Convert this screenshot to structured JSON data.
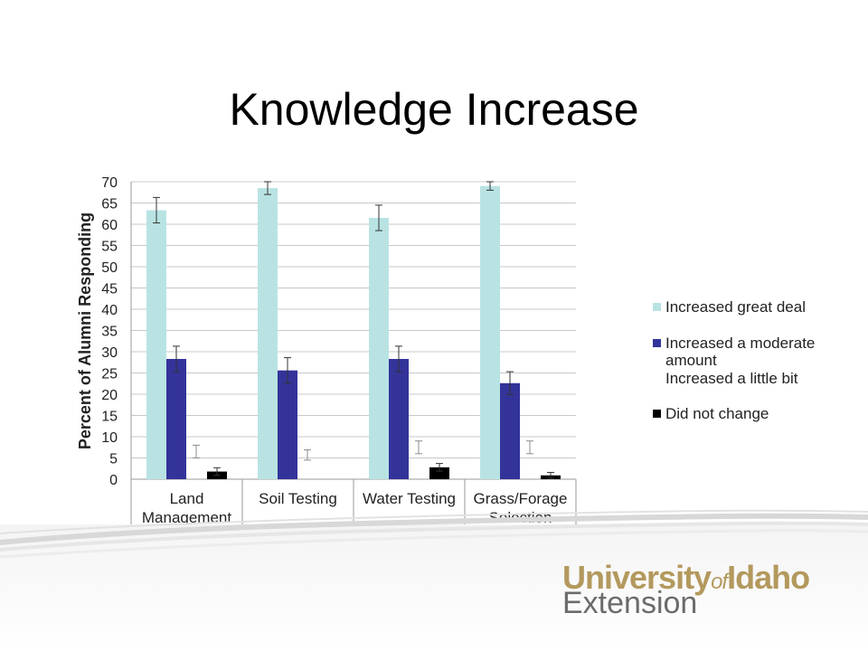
{
  "slide": {
    "title": "Knowledge Increase"
  },
  "chart_data": {
    "type": "bar",
    "title": "",
    "ylabel": "Percent of Alumni Responding",
    "xlabel": "",
    "ylim": [
      0,
      70
    ],
    "yticks": [
      0,
      5,
      10,
      15,
      20,
      25,
      30,
      35,
      40,
      45,
      50,
      55,
      60,
      65,
      70
    ],
    "grid": true,
    "legend_position": "right",
    "categories": [
      [
        "Land",
        "Management"
      ],
      [
        "Soil Testing"
      ],
      [
        "Water Testing"
      ],
      [
        "Grass/Forage",
        "Selection"
      ]
    ],
    "series": [
      {
        "name": "Increased great deal",
        "color": "#b9e3e3",
        "values": [
          63.3,
          68.5,
          61.5,
          69.0
        ],
        "error": [
          3.0,
          1.5,
          3.0,
          1.0
        ]
      },
      {
        "name": "Increased a moderate amount",
        "color": "#33339a",
        "values": [
          28.3,
          25.6,
          28.3,
          22.6
        ],
        "error": [
          3.0,
          3.0,
          3.0,
          2.7
        ]
      },
      {
        "name": "Increased a little bit",
        "color": "#8b8b8b",
        "values": [
          6.5,
          5.7,
          7.5,
          7.5
        ],
        "error": [
          1.5,
          1.2,
          1.5,
          1.5
        ],
        "bars_shown": false
      },
      {
        "name": "Did not change",
        "color": "#000000",
        "values": [
          1.8,
          0,
          2.8,
          0.9
        ],
        "error": [
          0.9,
          0,
          0.9,
          0.7
        ]
      }
    ]
  },
  "legend": {
    "items": [
      {
        "label": "Increased great deal",
        "color": "#b9e3e3",
        "swatch": true
      },
      {
        "label": "Increased a moderate amount",
        "color": "#33339a",
        "swatch": true
      },
      {
        "label": "Increased a little bit",
        "color": "#ffffff",
        "swatch": false
      },
      {
        "label": "Did not change",
        "color": "#000000",
        "swatch": true
      }
    ]
  },
  "logo": {
    "part1": "University",
    "of": "of",
    "part2": "Idaho",
    "line2": "Extension"
  }
}
